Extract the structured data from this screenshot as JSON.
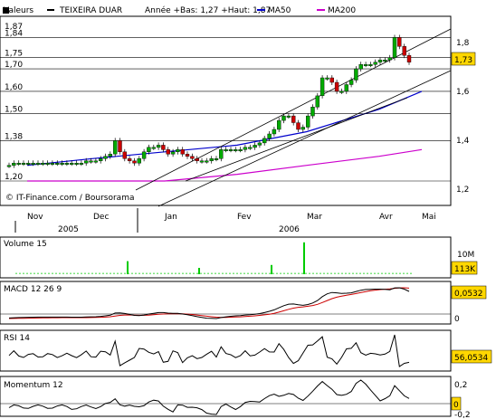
{
  "header": {
    "label": "Valeurs",
    "stock": "TEIXEIRA DUAR",
    "range_text": "Année +Bas: 1,27 +Haut: 1,87",
    "legend": [
      {
        "name": "MA50",
        "color": "#0000cc"
      },
      {
        "name": "MA200",
        "color": "#cc00cc"
      }
    ]
  },
  "source": "© IT-Finance.com / Boursorama",
  "colors": {
    "up": "#00aa00",
    "down": "#cc0000",
    "volume": "#00cc00",
    "signal": "#cc0000",
    "badge": "#ffd700",
    "grid": "#000000"
  },
  "price_panel": {
    "left_ticks": [
      {
        "v": 1.87,
        "label": "1,87"
      },
      {
        "v": 1.84,
        "label": "1,84"
      },
      {
        "v": 1.75,
        "label": "1,75"
      },
      {
        "v": 1.7,
        "label": "1,70"
      },
      {
        "v": 1.6,
        "label": "1,60"
      },
      {
        "v": 1.5,
        "label": "1,50"
      },
      {
        "v": 1.38,
        "label": "1,38"
      },
      {
        "v": 1.2,
        "label": "1,20"
      }
    ],
    "right_ticks": [
      {
        "v": 1.8,
        "label": "1,8"
      },
      {
        "v": 1.6,
        "label": "1,6"
      },
      {
        "v": 1.4,
        "label": "1,4"
      },
      {
        "v": 1.2,
        "label": "1,2"
      }
    ],
    "last_value": "1,73"
  },
  "months": [
    "Nov",
    "Dec",
    "Jan",
    "Fev",
    "Mar",
    "Avr",
    "Mai"
  ],
  "years": [
    "2005",
    "2006"
  ],
  "volume_panel": {
    "title": "Volume 15",
    "tick_label": "10M",
    "last_value": "113K"
  },
  "macd_panel": {
    "title": "MACD 12 26 9",
    "last_value": "0,0532",
    "zero_label": "0"
  },
  "rsi_panel": {
    "title": "RSI 14",
    "last_value": "56,0534"
  },
  "momentum_panel": {
    "title": "Momentum 12",
    "top_label": "0,2",
    "last_value": "0",
    "bottom_label": "-0,2"
  },
  "chart_data": {
    "type": "candlestick",
    "title": "TEIXEIRA DUAR",
    "x_months": [
      "Nov",
      "Dec",
      "Jan",
      "Fev",
      "Mar",
      "Avr",
      "Mai"
    ],
    "ylim": [
      1.15,
      1.9
    ],
    "year_low": 1.27,
    "year_high": 1.87,
    "last_close": 1.73,
    "close_series": [
      1.27,
      1.28,
      1.28,
      1.28,
      1.28,
      1.28,
      1.28,
      1.28,
      1.28,
      1.28,
      1.28,
      1.28,
      1.28,
      1.28,
      1.28,
      1.28,
      1.29,
      1.29,
      1.29,
      1.3,
      1.31,
      1.32,
      1.38,
      1.33,
      1.3,
      1.29,
      1.28,
      1.3,
      1.33,
      1.35,
      1.35,
      1.36,
      1.34,
      1.32,
      1.33,
      1.34,
      1.32,
      1.31,
      1.3,
      1.29,
      1.29,
      1.29,
      1.3,
      1.3,
      1.34,
      1.34,
      1.34,
      1.34,
      1.34,
      1.35,
      1.35,
      1.36,
      1.37,
      1.39,
      1.41,
      1.43,
      1.47,
      1.49,
      1.49,
      1.46,
      1.43,
      1.44,
      1.49,
      1.53,
      1.58,
      1.66,
      1.66,
      1.64,
      1.6,
      1.6,
      1.63,
      1.65,
      1.7,
      1.72,
      1.72,
      1.72,
      1.73,
      1.74,
      1.74,
      1.75,
      1.84,
      1.8,
      1.76,
      1.73
    ],
    "volume_spikes": [
      {
        "month": "Dec",
        "value": 4.5
      },
      {
        "month": "Jan",
        "value": 2.2
      },
      {
        "month": "Fev",
        "value": 3.2
      },
      {
        "month": "Mar",
        "value": 11.0
      }
    ],
    "ma50": [
      1.27,
      1.3,
      1.33,
      1.36,
      1.42,
      1.52,
      1.6
    ],
    "ma200": [
      1.2,
      1.2,
      1.2,
      1.23,
      1.27,
      1.31,
      1.34
    ]
  }
}
